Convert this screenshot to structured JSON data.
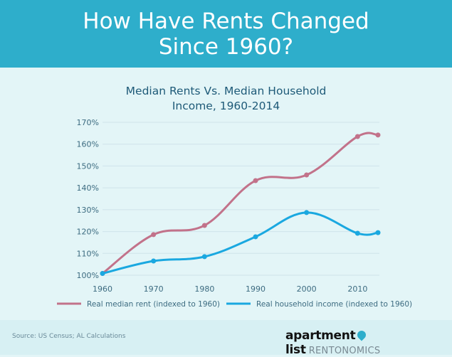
{
  "header": {
    "title_line1": "How Have Rents Changed",
    "title_line2": "Since 1960?"
  },
  "chart_data": {
    "type": "line",
    "title_line1": "Median Rents Vs. Median Household",
    "title_line2": "Income, 1960-2014",
    "xlim": [
      1960,
      2014
    ],
    "ylim": [
      100,
      170
    ],
    "x_ticks": [
      1960,
      1970,
      1980,
      1990,
      2000,
      2010
    ],
    "x_tick_labels": [
      "1960",
      "1970",
      "1980",
      "1990",
      "2000",
      "2010"
    ],
    "y_ticks": [
      100,
      110,
      120,
      130,
      140,
      150,
      160,
      170
    ],
    "y_tick_labels": [
      "100%",
      "110%",
      "120%",
      "130%",
      "140%",
      "150%",
      "160%",
      "170%"
    ],
    "grid": "horizontal",
    "legend": "bottom",
    "series": [
      {
        "name": "Real median rent (indexed to 1960)",
        "color": "#c2728a",
        "x": [
          1960,
          1970,
          1980,
          1990,
          2000,
          2010,
          2014
        ],
        "values": [
          100.8,
          118.6,
          122.8,
          143.3,
          145.9,
          163.5,
          164.2
        ]
      },
      {
        "name": "Real household income (indexed to 1960)",
        "color": "#1aa8e0",
        "x": [
          1960,
          1970,
          1980,
          1990,
          2000,
          2010,
          2014
        ],
        "values": [
          100.8,
          106.5,
          108.5,
          117.6,
          128.7,
          119.2,
          119.5
        ]
      }
    ]
  },
  "footer": {
    "source": "Source: US Census; AL Calculations",
    "logo_text": "apartment list",
    "logo_sub": "RENTONOMICS"
  }
}
